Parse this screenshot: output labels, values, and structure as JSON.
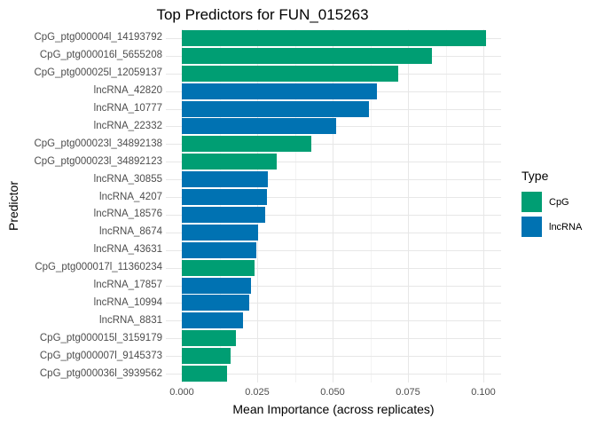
{
  "chart_data": {
    "type": "bar",
    "orientation": "horizontal",
    "title": "Top Predictors for FUN_015263",
    "xlabel": "Mean Importance (across replicates)",
    "ylabel": "Predictor",
    "grid": true,
    "legend_position": "right",
    "xlim": [
      -0.0053,
      0.1061
    ],
    "x_ticks": [
      0.0,
      0.025,
      0.05,
      0.075,
      0.1
    ],
    "x_tick_labels": [
      "0.000",
      "0.025",
      "0.050",
      "0.075",
      "0.100"
    ],
    "categories": [
      "CpG_ptg000004l_14193792",
      "CpG_ptg000016l_5655208",
      "CpG_ptg000025l_12059137",
      "lncRNA_42820",
      "lncRNA_10777",
      "lncRNA_22332",
      "CpG_ptg000023l_34892138",
      "CpG_ptg000023l_34892123",
      "lncRNA_30855",
      "lncRNA_4207",
      "lncRNA_18576",
      "lncRNA_8674",
      "lncRNA_43631",
      "CpG_ptg000017l_11360234",
      "lncRNA_17857",
      "lncRNA_10994",
      "lncRNA_8831",
      "CpG_ptg000015l_3159179",
      "CpG_ptg000007l_9145373",
      "CpG_ptg000036l_3939562"
    ],
    "values": [
      0.101,
      0.0828,
      0.0719,
      0.0647,
      0.0621,
      0.0513,
      0.0428,
      0.0314,
      0.0286,
      0.0283,
      0.0277,
      0.0252,
      0.0248,
      0.024,
      0.023,
      0.0224,
      0.0204,
      0.0179,
      0.0161,
      0.0151
    ],
    "types": [
      "CpG",
      "CpG",
      "CpG",
      "lncRNA",
      "lncRNA",
      "lncRNA",
      "CpG",
      "CpG",
      "lncRNA",
      "lncRNA",
      "lncRNA",
      "lncRNA",
      "lncRNA",
      "CpG",
      "lncRNA",
      "lncRNA",
      "lncRNA",
      "CpG",
      "CpG",
      "CpG"
    ],
    "colors": {
      "CpG": "#009E73",
      "lncRNA": "#0072B2"
    }
  },
  "legend": {
    "title": "Type",
    "items": [
      {
        "label": "CpG",
        "color": "#009E73"
      },
      {
        "label": "lncRNA",
        "color": "#0072B2"
      }
    ]
  }
}
